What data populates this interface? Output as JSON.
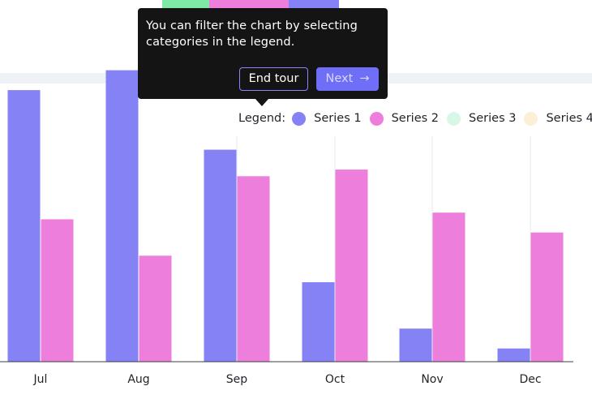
{
  "tour_tooltip": {
    "text": "You can filter the chart by selecting categories in the legend.",
    "end_label": "End tour",
    "next_label": "Next",
    "next_icon": "arrow-right-icon"
  },
  "colors": {
    "series1": "#8582f5",
    "series2": "#ee7edb",
    "series3": "#d9f7e6",
    "series4": "#fbefd7",
    "tooltip_bg": "#141414",
    "next_button": "#6f6ef7"
  },
  "chart_data": {
    "type": "bar",
    "categories": [
      "Jul",
      "Aug",
      "Sep",
      "Oct",
      "Nov",
      "Dec"
    ],
    "series": [
      {
        "name": "Series 1",
        "values": [
          82,
          88,
          64,
          24,
          10,
          4
        ]
      },
      {
        "name": "Series 2",
        "values": [
          43,
          32,
          56,
          58,
          45,
          39
        ]
      },
      {
        "name": "Series 3",
        "values": [
          0,
          0,
          0,
          0,
          0,
          0
        ]
      },
      {
        "name": "Series 4",
        "values": [
          0,
          0,
          0,
          0,
          0,
          0
        ]
      }
    ],
    "legend": {
      "title": "Legend:",
      "placement": "top-right"
    },
    "ylim": [
      0,
      95
    ],
    "grid": "vertical"
  }
}
